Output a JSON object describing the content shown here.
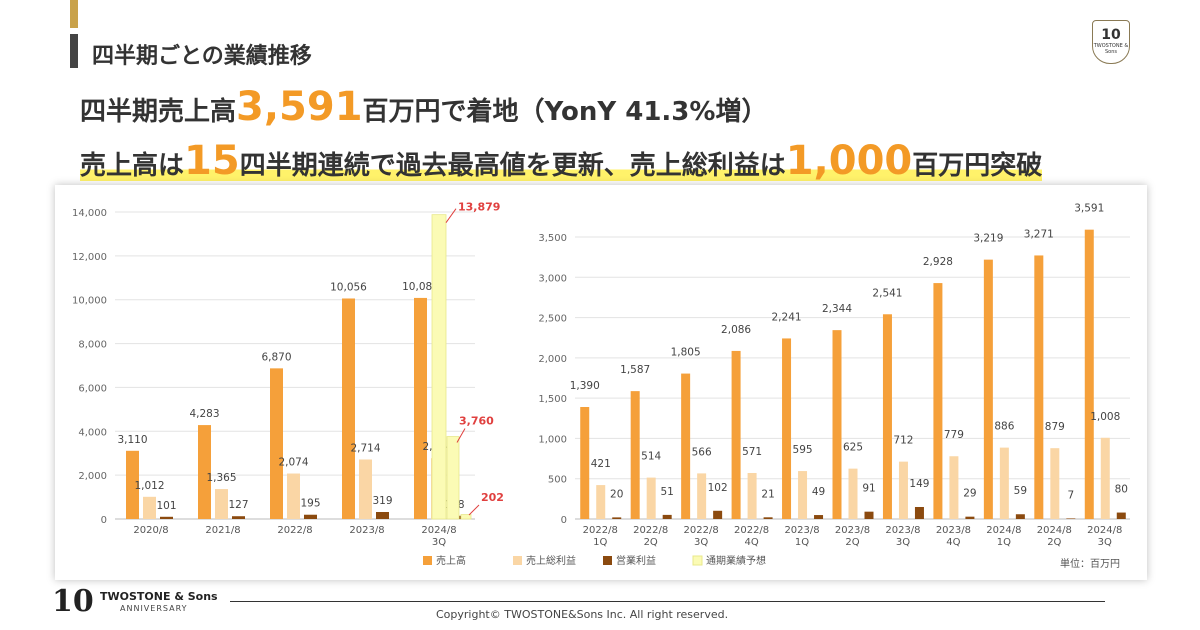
{
  "header": {
    "title": "四半期ごとの業績推移",
    "logo_text": "10",
    "logo_sub": "TWOSTONE & Sons"
  },
  "headline1": {
    "prefix": "四半期売上高",
    "value": "3,591",
    "suffix": "百万円で着地（YonY 41.3%増）"
  },
  "headline2": {
    "part1": "売上高は",
    "value1": "15",
    "part2": "四半期連続で過去最高値を更新、売上総利益は",
    "value2": "1,000",
    "part3": "百万円突破"
  },
  "colors": {
    "sales": "#f5a03a",
    "gross_profit": "#fad6a5",
    "operating_profit": "#8b4a0f",
    "forecast": "#fbfbb5",
    "forecast_label": "#e0403f"
  },
  "chart_data": [
    {
      "type": "bar",
      "categories": [
        "2020/8",
        "2021/8",
        "2022/8",
        "2023/8",
        "2024/8\n3Q"
      ],
      "series": [
        {
          "name": "売上高",
          "values": [
            3110,
            4283,
            6870,
            10056,
            10082
          ]
        },
        {
          "name": "売上総利益",
          "values": [
            1012,
            1365,
            2074,
            2714,
            2774
          ]
        },
        {
          "name": "営業利益",
          "values": [
            101,
            127,
            195,
            319,
            148
          ]
        }
      ],
      "forecast": {
        "name": "通期業績予想",
        "sales": 13879,
        "gross_profit": 3760,
        "operating_profit": 202
      },
      "ylim": [
        0,
        14000
      ],
      "yticks": [
        "0",
        "2,000",
        "4,000",
        "6,000",
        "8,000",
        "10,000",
        "12,000",
        "14,000"
      ]
    },
    {
      "type": "bar",
      "categories": [
        "2022/8\n1Q",
        "2022/8\n2Q",
        "2022/8\n3Q",
        "2022/8\n4Q",
        "2023/8\n1Q",
        "2023/8\n2Q",
        "2023/8\n3Q",
        "2023/8\n4Q",
        "2024/8\n1Q",
        "2024/8\n2Q",
        "2024/8\n3Q"
      ],
      "series": [
        {
          "name": "売上高",
          "values": [
            1390,
            1587,
            1805,
            2086,
            2241,
            2344,
            2541,
            2928,
            3219,
            3271,
            3591
          ]
        },
        {
          "name": "売上総利益",
          "values": [
            421,
            514,
            566,
            571,
            595,
            625,
            712,
            779,
            886,
            879,
            1008
          ]
        },
        {
          "name": "営業利益",
          "values": [
            20,
            51,
            102,
            21,
            49,
            91,
            149,
            29,
            59,
            7,
            80
          ]
        }
      ],
      "ylim": [
        0,
        3500
      ],
      "yticks": [
        "0",
        "500",
        "1,000",
        "1,500",
        "2,000",
        "2,500",
        "3,000",
        "3,500"
      ]
    }
  ],
  "legend": [
    "売上高",
    "売上総利益",
    "営業利益",
    "通期業績予想"
  ],
  "unit_label": "単位：百万円",
  "footer": {
    "logo": "10",
    "brand": "TWOSTONE & Sons",
    "anniversary": "ANNIVERSARY",
    "copyright": "Copyright© TWOSTONE&Sons Inc. All right reserved."
  }
}
